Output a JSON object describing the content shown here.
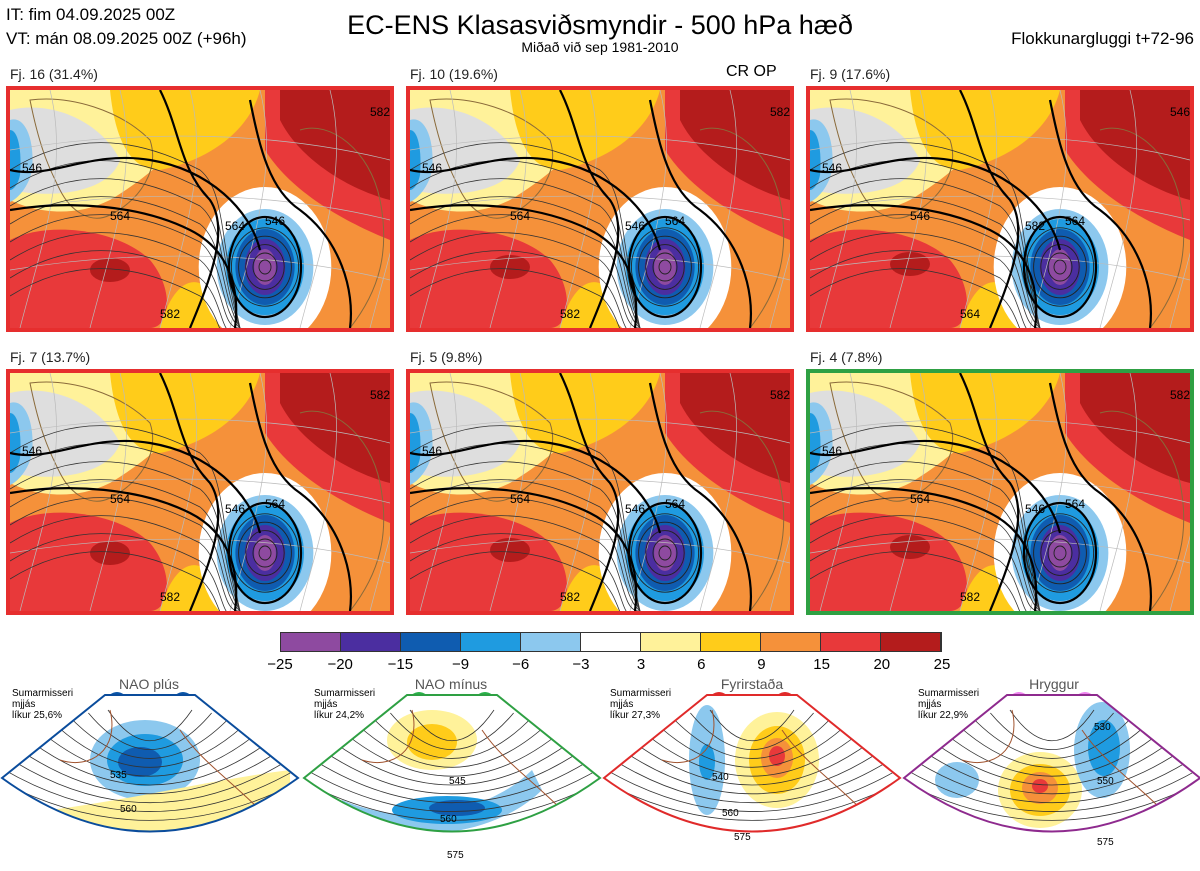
{
  "header": {
    "it_line": "IT: fim 04.09.2025 00Z",
    "vt_line": "VT: mán 08.09.2025 00Z  (+96h)",
    "title": "EC-ENS Klasasviðsmyndir - 500 hPa hæð",
    "subtitle": "Miðað við sep 1981-2010",
    "window": "Flokkunargluggi t+72-96",
    "cr_op": "CR OP"
  },
  "panels": [
    {
      "label": "Fj. 16 (31.4%)",
      "selected": false,
      "contours": [
        "546",
        "564",
        "546",
        "582",
        "564",
        "582"
      ]
    },
    {
      "label": "Fj. 10 (19.6%)",
      "selected": false,
      "contours": [
        "546",
        "564",
        "564",
        "582",
        "546",
        "582"
      ]
    },
    {
      "label": "Fj. 9 (17.6%)",
      "selected": false,
      "contours": [
        "546",
        "546",
        "564",
        "564",
        "582",
        "546"
      ]
    },
    {
      "label": "Fj. 7 (13.7%)",
      "selected": false,
      "contours": [
        "546",
        "564",
        "564",
        "582",
        "546",
        "582"
      ]
    },
    {
      "label": "Fj. 5 (9.8%)",
      "selected": false,
      "contours": [
        "546",
        "564",
        "564",
        "582",
        "546",
        "582"
      ]
    },
    {
      "label": "Fj. 4 (7.8%)",
      "selected": true,
      "contours": [
        "546",
        "564",
        "564",
        "582",
        "546",
        "582"
      ]
    }
  ],
  "chart_data": {
    "type": "heatmap",
    "title": "EC-ENS Klasasviðsmyndir - 500 hPa hæð",
    "colorbar": {
      "ticks": [
        "−25",
        "−20",
        "−15",
        "−9",
        "−6",
        "−3",
        "3",
        "6",
        "9",
        "15",
        "20",
        "25"
      ],
      "bins": [
        -25,
        -20,
        -15,
        -9,
        -6,
        -3,
        3,
        6,
        9,
        15,
        20,
        25
      ],
      "colors": [
        "#8e4aa0",
        "#4b2ea0",
        "#0f5cb0",
        "#1f9be0",
        "#8cc8ee",
        "#ffffff",
        "#fff29a",
        "#ffcc1a",
        "#f5913a",
        "#e8393a",
        "#b41c1c"
      ]
    }
  },
  "regimes": [
    {
      "name": "NAO plús",
      "season": "Sumarmisseri",
      "smooth": "mjjás",
      "prob": "líkur 25,6%",
      "dot_color": "#0a55a8",
      "border": "#0a4c9c",
      "labels": [
        "535",
        "560"
      ]
    },
    {
      "name": "NAO mínus",
      "season": "Sumarmisseri",
      "smooth": "mjjás",
      "prob": "líkur 24,2%",
      "dot_color": "#2ab14a",
      "border": "#2ea043",
      "labels": [
        "545",
        "560",
        "575"
      ]
    },
    {
      "name": "Fyrirstaða",
      "season": "Sumarmisseri",
      "smooth": "mjjás",
      "prob": "líkur 27,3%",
      "dot_color": "#e02a2a",
      "border": "#e02a2a",
      "labels": [
        "540",
        "560",
        "575"
      ]
    },
    {
      "name": "Hryggur",
      "season": "Sumarmisseri",
      "smooth": "mjjás",
      "prob": "líkur 22,9%",
      "dot_color": "#ee82ee",
      "border": "#8e2a8e",
      "labels": [
        "530",
        "550",
        "575"
      ]
    }
  ]
}
